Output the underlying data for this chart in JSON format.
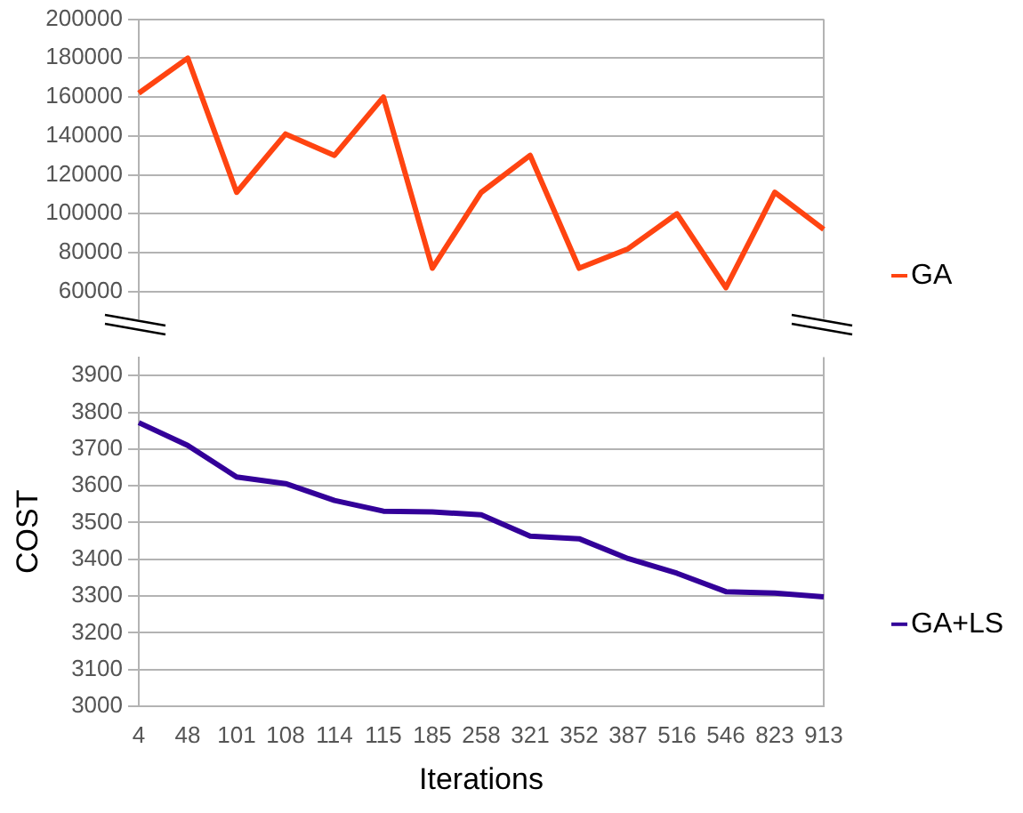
{
  "chart_data": [
    {
      "type": "line",
      "categories": [
        "4",
        "48",
        "101",
        "108",
        "114",
        "115",
        "185",
        "258",
        "321",
        "352",
        "387",
        "516",
        "546",
        "823",
        "913"
      ],
      "series": [
        {
          "name": "GA",
          "color": "#ff4411",
          "values": [
            162000,
            180000,
            111000,
            141000,
            130000,
            160000,
            72000,
            111000,
            130000,
            72000,
            82000,
            100000,
            62000,
            111000,
            92000
          ]
        }
      ],
      "ylim": [
        46000,
        200000
      ],
      "yticks": [
        60000,
        80000,
        100000,
        120000,
        140000,
        160000,
        180000,
        200000
      ],
      "grid": "y",
      "legend": "right",
      "tick_labels": "y",
      "marker": "none",
      "line_style": "solid"
    },
    {
      "type": "line",
      "categories": [
        "4",
        "48",
        "101",
        "108",
        "114",
        "115",
        "185",
        "258",
        "321",
        "352",
        "387",
        "516",
        "546",
        "823",
        "913"
      ],
      "series": [
        {
          "name": "GA+LS",
          "color": "#330099",
          "values": [
            3772,
            3710,
            3624,
            3606,
            3560,
            3531,
            3529,
            3521,
            3463,
            3456,
            3402,
            3362,
            3312,
            3308,
            3298
          ]
        }
      ],
      "xlabel": "Iterations",
      "ylabel": "COST",
      "ylim": [
        3000,
        3950
      ],
      "yticks": [
        3000,
        3100,
        3200,
        3300,
        3400,
        3500,
        3600,
        3700,
        3800,
        3900
      ],
      "grid": "y",
      "legend": "right",
      "marker": "none",
      "line_style": "solid"
    }
  ]
}
